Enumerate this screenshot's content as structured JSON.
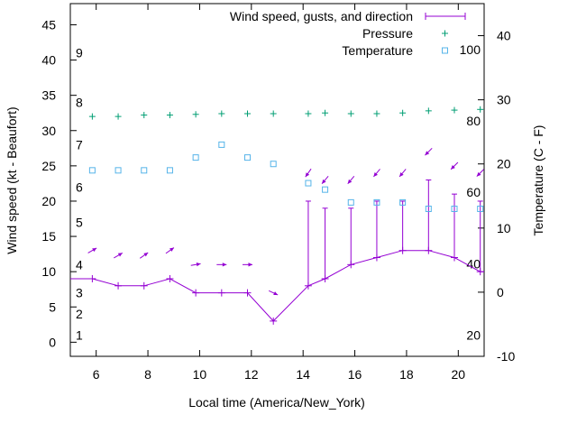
{
  "chart_data": {
    "type": "line",
    "title": "",
    "xlabel": "Local time (America/New_York)",
    "ylabel": "Wind speed (kt - Beaufort)",
    "y2label": "Temperature (C - F)",
    "xlim": [
      5,
      21
    ],
    "ylim": [
      -2,
      48
    ],
    "y2lim": [
      -10,
      45
    ],
    "x_ticks": [
      6,
      8,
      10,
      12,
      14,
      16,
      18,
      20
    ],
    "y_ticks": [
      0,
      5,
      10,
      15,
      20,
      25,
      30,
      35,
      40,
      45
    ],
    "y2_ticks": [
      -10,
      0,
      10,
      20,
      30,
      40
    ],
    "beaufort_labels": [
      {
        "label": "1",
        "y": 1
      },
      {
        "label": "2",
        "y": 4
      },
      {
        "label": "3",
        "y": 7
      },
      {
        "label": "4",
        "y": 11
      },
      {
        "label": "5",
        "y": 17
      },
      {
        "label": "6",
        "y": 22
      },
      {
        "label": "7",
        "y": 28
      },
      {
        "label": "8",
        "y": 34
      },
      {
        "label": "9",
        "y": 41
      }
    ],
    "fahrenheit_labels": [
      {
        "label": "20",
        "c": -6.7
      },
      {
        "label": "40",
        "c": 4.4
      },
      {
        "label": "60",
        "c": 15.6
      },
      {
        "label": "80",
        "c": 26.7
      },
      {
        "label": "100",
        "c": 37.8
      }
    ],
    "grid": false,
    "legend_position": "top-right",
    "series": [
      {
        "name": "Wind speed, gusts, and direction",
        "color": "#9400d3",
        "x": [
          5,
          5.85,
          6.85,
          7.85,
          8.85,
          9.85,
          10.85,
          11.85,
          12.85,
          14.2,
          14.85,
          15.85,
          16.85,
          17.85,
          18.85,
          19.85,
          20.85,
          21
        ],
        "values": [
          9,
          9,
          8,
          8,
          9,
          7,
          7,
          7,
          3,
          8,
          9,
          11,
          12,
          13,
          13,
          12,
          10,
          10
        ],
        "gusts": [
          null,
          null,
          null,
          null,
          null,
          null,
          null,
          null,
          null,
          20,
          19,
          19,
          20,
          20,
          23,
          21,
          20,
          null
        ]
      },
      {
        "name": "Pressure",
        "color": "#009e73",
        "x": [
          5.85,
          6.85,
          7.85,
          8.85,
          9.85,
          10.85,
          11.85,
          12.85,
          14.2,
          14.85,
          15.85,
          16.85,
          17.85,
          18.85,
          19.85,
          20.85
        ],
        "values": [
          32,
          32,
          32.2,
          32.2,
          32.3,
          32.4,
          32.4,
          32.4,
          32.4,
          32.5,
          32.4,
          32.4,
          32.5,
          32.8,
          32.9,
          33
        ]
      },
      {
        "name": "Temperature",
        "color": "#56b4e9",
        "axis": "y2",
        "x": [
          5.85,
          6.85,
          7.85,
          8.85,
          9.85,
          10.85,
          11.85,
          12.85,
          14.2,
          14.85,
          15.85,
          16.85,
          17.85,
          18.85,
          19.85,
          20.85
        ],
        "values": [
          19,
          19,
          19,
          19,
          21,
          23,
          21,
          20,
          17,
          16,
          14,
          14,
          14,
          13,
          13,
          13
        ]
      }
    ],
    "wind_arrows": [
      {
        "x": 5.85,
        "y": 13,
        "angle": -30
      },
      {
        "x": 6.85,
        "y": 12.3,
        "angle": -30
      },
      {
        "x": 7.85,
        "y": 12.3,
        "angle": -35
      },
      {
        "x": 8.85,
        "y": 13,
        "angle": -35
      },
      {
        "x": 9.85,
        "y": 11,
        "angle": -10
      },
      {
        "x": 10.85,
        "y": 11,
        "angle": 0
      },
      {
        "x": 11.85,
        "y": 11,
        "angle": 0
      },
      {
        "x": 12.85,
        "y": 7,
        "angle": 25
      },
      {
        "x": 14.2,
        "y": 24,
        "angle": 125
      },
      {
        "x": 14.85,
        "y": 23,
        "angle": 130
      },
      {
        "x": 15.85,
        "y": 23,
        "angle": 130
      },
      {
        "x": 16.85,
        "y": 24,
        "angle": 130
      },
      {
        "x": 17.85,
        "y": 24,
        "angle": 130
      },
      {
        "x": 18.85,
        "y": 27,
        "angle": 135
      },
      {
        "x": 19.85,
        "y": 25,
        "angle": 135
      },
      {
        "x": 20.85,
        "y": 24,
        "angle": 135
      }
    ]
  }
}
